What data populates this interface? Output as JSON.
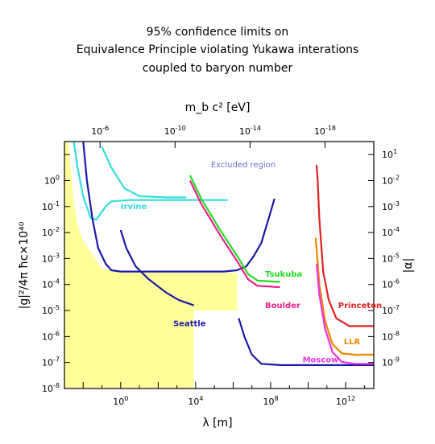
{
  "chart_data": {
    "type": "line",
    "title_lines": [
      "95% confidence limits on",
      "Equivalence Principle violating Yukawa interations",
      "coupled to baryon number"
    ],
    "xlabel": "λ [m]",
    "ylabel": "|g|²/4π ħc×10⁴⁰",
    "top_xlabel": "m_b c² [eV]",
    "right_ylabel": "|α|",
    "x_log10_range": [
      -3,
      13.5
    ],
    "y_log10_range": [
      -8,
      1.5
    ],
    "x_ticks": [
      {
        "exp": 0,
        "label": "10^0"
      },
      {
        "exp": 4,
        "label": "10^4"
      },
      {
        "exp": 8,
        "label": "10^8"
      },
      {
        "exp": 12,
        "label": "10^12"
      }
    ],
    "y_ticks": [
      {
        "exp": 0,
        "label": "10^0"
      },
      {
        "exp": -1,
        "label": "10^-1"
      },
      {
        "exp": -2,
        "label": "10^-2"
      },
      {
        "exp": -3,
        "label": "10^-3"
      },
      {
        "exp": -4,
        "label": "10^-4"
      },
      {
        "exp": -5,
        "label": "10^-5"
      },
      {
        "exp": -6,
        "label": "10^-6"
      },
      {
        "exp": -7,
        "label": "10^-7"
      },
      {
        "exp": -8,
        "label": "10^-8"
      }
    ],
    "top_ticks": [
      {
        "x_exp": -1.1,
        "label": "10^-6"
      },
      {
        "x_exp": 2.9,
        "label": "10^-10"
      },
      {
        "x_exp": 6.9,
        "label": "10^-14"
      },
      {
        "x_exp": 10.9,
        "label": "10^-18"
      }
    ],
    "right_ticks": [
      {
        "y_exp": 1.0,
        "label": "10^1"
      },
      {
        "y_exp": 0.0,
        "label": "10^-2"
      },
      {
        "y_exp": -1.0,
        "label": "10^-3"
      },
      {
        "y_exp": -2.0,
        "label": "10^-4"
      },
      {
        "y_exp": -3.0,
        "label": "10^-5"
      },
      {
        "y_exp": -4.0,
        "label": "10^-6"
      },
      {
        "y_exp": -5.0,
        "label": "10^-7"
      },
      {
        "y_exp": -6.0,
        "label": "10^-8"
      },
      {
        "y_exp": -7.0,
        "label": "10^-9"
      }
    ],
    "excluded_label": "Excluded region",
    "allowed_region_color": "#ffff9a",
    "allowed_region_boundary": [
      [
        -3,
        -8
      ],
      [
        -3,
        1.5
      ],
      [
        -2.8,
        1.5
      ],
      [
        -2.5,
        -0.8
      ],
      [
        -2.3,
        -1.7
      ],
      [
        -2.0,
        -2.3
      ],
      [
        -1.0,
        -3.4
      ],
      [
        0,
        -3.5
      ],
      [
        3.9,
        -3.55
      ],
      [
        3.9,
        -3.55
      ],
      [
        6.2,
        -3.55
      ],
      [
        6.2,
        -5.0
      ],
      [
        6.2,
        -5.0
      ],
      [
        3.9,
        -5.0
      ],
      [
        3.9,
        -5.0
      ],
      [
        3.9,
        -8
      ]
    ],
    "series": [
      {
        "name": "Irvine",
        "color": "#33dddd",
        "label_at": [
          0,
          -1.1
        ],
        "points": [
          [
            -2.5,
            1.5
          ],
          [
            -2.3,
            0.5
          ],
          [
            -2.0,
            -0.6
          ],
          [
            -1.6,
            -1.45
          ],
          [
            -1.3,
            -1.5
          ],
          [
            -0.8,
            -1.0
          ],
          [
            -0.5,
            -0.8
          ],
          [
            0.5,
            -0.75
          ],
          [
            4.5,
            -0.75
          ],
          [
            5.7,
            -0.75
          ]
        ]
      },
      {
        "name": "",
        "color": "#33dddd",
        "points": [
          [
            -1.0,
            1.3
          ],
          [
            -0.5,
            0.5
          ],
          [
            0.2,
            -0.3
          ],
          [
            1.0,
            -0.6
          ],
          [
            2.5,
            -0.65
          ],
          [
            3.5,
            -0.65
          ]
        ]
      },
      {
        "name": "Seattle",
        "color": "#1a1aaa",
        "label_at": [
          2.8,
          -5.6
        ],
        "points": [
          [
            -2.0,
            1.5
          ],
          [
            -1.8,
            0.0
          ],
          [
            -1.5,
            -1.5
          ],
          [
            -1.2,
            -2.6
          ],
          [
            -0.8,
            -3.2
          ],
          [
            -0.5,
            -3.45
          ],
          [
            0,
            -3.5
          ],
          [
            1.5,
            -3.5
          ],
          [
            3.5,
            -3.5
          ],
          [
            5.5,
            -3.5
          ],
          [
            6.2,
            -3.45
          ],
          [
            6.7,
            -3.3
          ],
          [
            7.1,
            -2.9
          ],
          [
            7.5,
            -2.4
          ],
          [
            8.0,
            -1.2
          ],
          [
            8.2,
            -0.7
          ]
        ]
      },
      {
        "name": "",
        "color": "#1a1aaa",
        "points": [
          [
            0,
            -1.9
          ],
          [
            0.3,
            -2.6
          ],
          [
            0.8,
            -3.3
          ],
          [
            1.5,
            -3.8
          ],
          [
            2.4,
            -4.3
          ],
          [
            3.1,
            -4.6
          ],
          [
            3.9,
            -4.8
          ]
        ]
      },
      {
        "name": "",
        "color": "#1a1aaa",
        "points": [
          [
            6.3,
            -5.3
          ],
          [
            6.6,
            -6.0
          ],
          [
            7.0,
            -6.7
          ],
          [
            7.5,
            -7.05
          ],
          [
            8.5,
            -7.1
          ],
          [
            10,
            -7.1
          ],
          [
            13.5,
            -7.1
          ]
        ]
      },
      {
        "name": "Tsukuba",
        "color": "#22dd22",
        "label_at": [
          7.7,
          -3.7
        ],
        "points": [
          [
            3.7,
            0.2
          ],
          [
            4.3,
            -0.7
          ],
          [
            5.3,
            -1.9
          ],
          [
            6.3,
            -3.0
          ],
          [
            6.8,
            -3.6
          ],
          [
            7.3,
            -3.85
          ],
          [
            8.5,
            -3.9
          ]
        ]
      },
      {
        "name": "Boulder",
        "color": "#ee2288",
        "label_at": [
          7.7,
          -4.9
        ],
        "points": [
          [
            3.7,
            0.0
          ],
          [
            4.3,
            -0.9
          ],
          [
            5.3,
            -2.1
          ],
          [
            6.3,
            -3.2
          ],
          [
            6.8,
            -3.8
          ],
          [
            7.3,
            -4.05
          ],
          [
            8.5,
            -4.1
          ]
        ]
      },
      {
        "name": "Princeton",
        "color": "#dd2222",
        "label_at": [
          11.6,
          -4.9
        ],
        "points": [
          [
            10.45,
            0.6
          ],
          [
            10.5,
            0.1
          ],
          [
            10.6,
            -1.5
          ],
          [
            10.8,
            -3.5
          ],
          [
            11.1,
            -4.6
          ],
          [
            11.5,
            -5.3
          ],
          [
            12.2,
            -5.6
          ],
          [
            13.5,
            -5.6
          ]
        ]
      },
      {
        "name": "LLR",
        "color": "#ee8800",
        "label_at": [
          11.9,
          -6.3
        ],
        "points": [
          [
            10.4,
            -2.2
          ],
          [
            10.6,
            -4.0
          ],
          [
            10.9,
            -5.4
          ],
          [
            11.3,
            -6.3
          ],
          [
            11.8,
            -6.65
          ],
          [
            12.5,
            -6.7
          ],
          [
            13.5,
            -6.7
          ]
        ]
      },
      {
        "name": "Moscow",
        "color": "#ee33dd",
        "label_at": [
          9.7,
          -7.0
        ],
        "points": [
          [
            10.45,
            -3.2
          ],
          [
            10.6,
            -4.4
          ],
          [
            10.9,
            -5.7
          ],
          [
            11.3,
            -6.6
          ],
          [
            11.8,
            -6.98
          ],
          [
            12.5,
            -7.05
          ],
          [
            13.5,
            -7.05
          ]
        ]
      }
    ]
  }
}
